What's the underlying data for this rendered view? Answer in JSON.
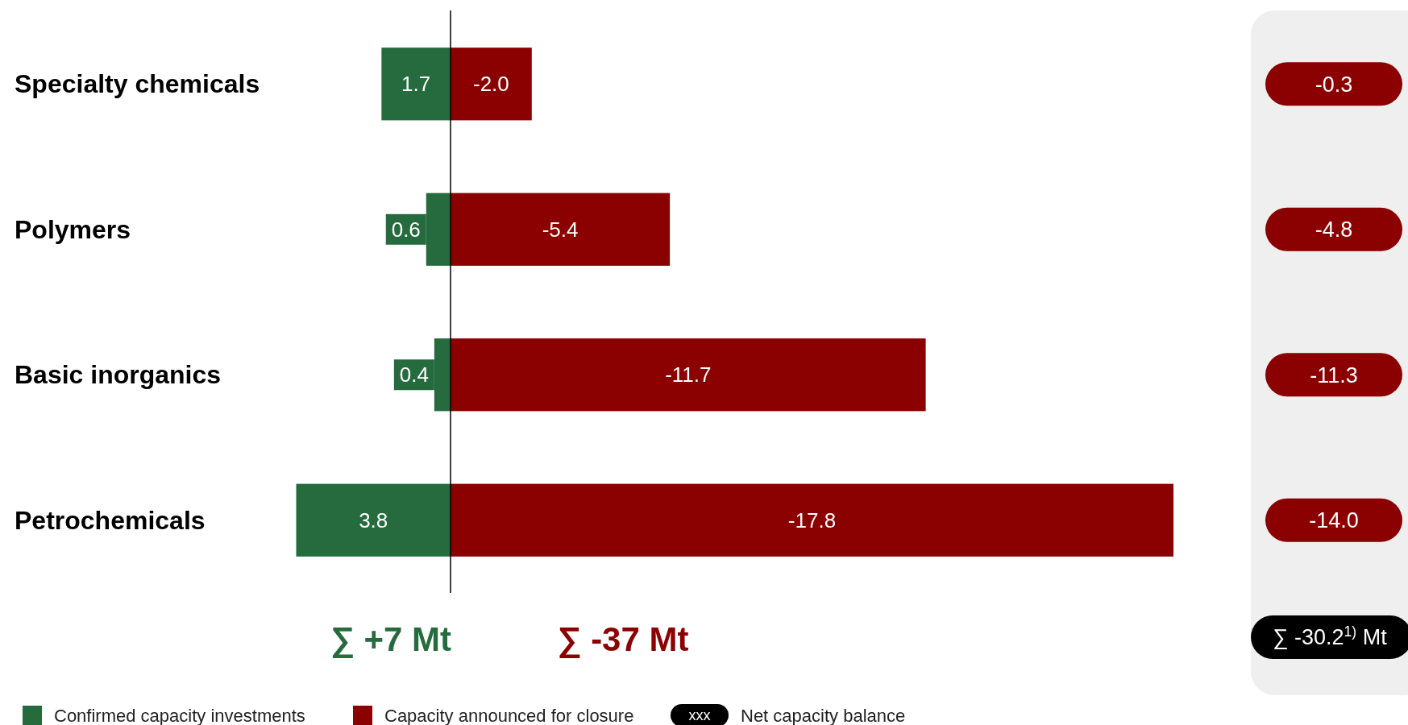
{
  "chart_data": {
    "type": "bar",
    "orientation": "horizontal",
    "stacked": true,
    "categories": [
      "Specialty chemicals",
      "Polymers",
      "Basic inorganics",
      "Petrochemicals"
    ],
    "series": [
      {
        "name": "Confirmed capacity investments",
        "color": "#256b3e",
        "values": [
          1.7,
          0.6,
          0.4,
          3.8
        ],
        "value_labels": [
          "1.7",
          "0.6",
          "0.4",
          "3.8"
        ]
      },
      {
        "name": "Capacity announced for closure",
        "color": "#8b0000",
        "values": [
          -2.0,
          -5.4,
          -11.7,
          -17.8
        ],
        "value_labels": [
          "-2.0",
          "-5.4",
          "-11.7",
          "-17.8"
        ]
      }
    ],
    "tick_labels": "y",
    "legend": "bottom left",
    "annotations": [
      "-0.3",
      "-4.8",
      "-11.3",
      "-14.0",
      "∑ +7 Mt",
      "∑ -37 Mt",
      "∑ -30.2$^{1)}$ Mt",
      "xxx",
      "Net capacity balance"
    ]
  }
}
